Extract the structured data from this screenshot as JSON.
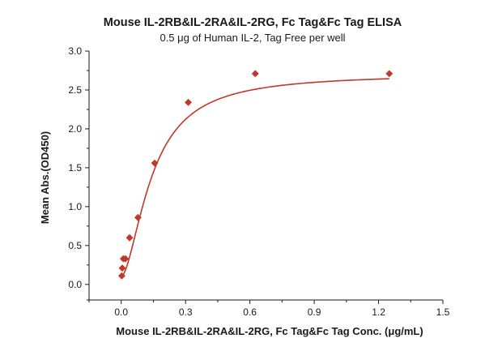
{
  "chart_data": {
    "type": "scatter",
    "title": "Mouse IL-2RB&IL-2RA&IL-2RG, Fc Tag&Fc Tag ELISA",
    "subtitle": "0.5 μg of Human IL-2, Tag Free per well",
    "xlabel": "Mouse IL-2RB&IL-2RA&IL-2RG, Fc Tag&Fc Tag Conc. (μg/mL)",
    "ylabel": "Mean Abs.(OD450)",
    "xlim": [
      -0.15,
      1.5
    ],
    "ylim": [
      -0.2,
      3.0
    ],
    "x_ticks": [
      0.0,
      0.3,
      0.6,
      0.9,
      1.2,
      1.5
    ],
    "x_tick_labels": [
      "0.0",
      "0.3",
      "0.6",
      "0.9",
      "1.2",
      "1.5"
    ],
    "y_ticks": [
      0.0,
      0.5,
      1.0,
      1.5,
      2.0,
      2.5,
      3.0
    ],
    "y_tick_labels": [
      "0.0",
      "0.5",
      "1.0",
      "1.5",
      "2.0",
      "2.5",
      "3.0"
    ],
    "grid": false,
    "series": [
      {
        "x": [
          0.0024,
          0.0049,
          0.0098,
          0.0195,
          0.039,
          0.078,
          0.156,
          0.3125,
          0.625,
          1.25
        ],
        "y": [
          0.11,
          0.21,
          0.33,
          0.33,
          0.6,
          0.86,
          1.56,
          2.34,
          2.71,
          2.71
        ],
        "marker": "diamond",
        "color": "#c0392b",
        "fit_curve": true
      }
    ]
  }
}
